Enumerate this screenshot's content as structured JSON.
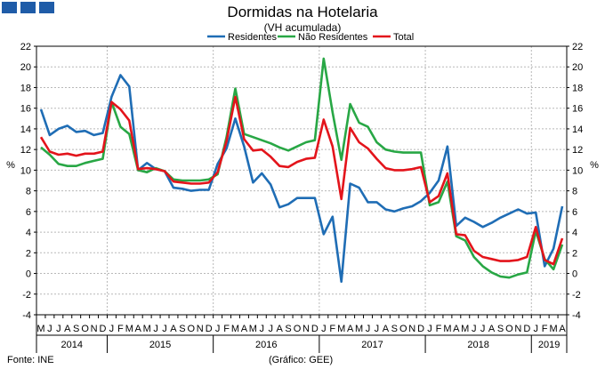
{
  "header": {
    "title": "Dormidas na Hotelaria",
    "subtitle": "(VH acumulada)"
  },
  "footer": {
    "source": "Fonte: INE",
    "credit": "(Gráfico: GEE)"
  },
  "colors": {
    "logo": "#1f5ca8"
  },
  "chart_data": {
    "type": "line",
    "title": "Dormidas na Hotelaria",
    "subtitle": "(VH acumulada)",
    "ylabel": "%",
    "ylim": [
      -4,
      22
    ],
    "yticks": [
      -4,
      -2,
      0,
      2,
      4,
      6,
      8,
      10,
      12,
      14,
      16,
      18,
      20,
      22
    ],
    "grid": true,
    "legend": "top",
    "month_labels": [
      "M",
      "J",
      "J",
      "A",
      "S",
      "O",
      "N",
      "D",
      "J",
      "F",
      "M",
      "A",
      "M",
      "J",
      "J",
      "A",
      "S",
      "O",
      "N",
      "D",
      "J",
      "F",
      "M",
      "A",
      "M",
      "J",
      "J",
      "A",
      "S",
      "O",
      "N",
      "D",
      "J",
      "F",
      "M",
      "A",
      "M",
      "J",
      "J",
      "A",
      "S",
      "O",
      "N",
      "D",
      "J",
      "F",
      "M",
      "A",
      "M",
      "J",
      "J",
      "A",
      "S",
      "O",
      "N",
      "D",
      "J",
      "F",
      "M",
      "A"
    ],
    "years": [
      {
        "label": "2014",
        "start": 0,
        "count": 8
      },
      {
        "label": "2015",
        "start": 8,
        "count": 12
      },
      {
        "label": "2016",
        "start": 20,
        "count": 12
      },
      {
        "label": "2017",
        "start": 32,
        "count": 12
      },
      {
        "label": "2018",
        "start": 44,
        "count": 12
      },
      {
        "label": "2019",
        "start": 56,
        "count": 4
      }
    ],
    "series": [
      {
        "name": "Residentes",
        "color": "#1f6db5",
        "values": [
          15.9,
          13.4,
          14.0,
          14.3,
          13.7,
          13.8,
          13.4,
          13.6,
          17.1,
          19.2,
          18.1,
          10.0,
          10.7,
          10.1,
          9.9,
          8.3,
          8.2,
          8.0,
          8.1,
          8.1,
          10.6,
          12.1,
          15.0,
          12.3,
          8.8,
          9.7,
          8.6,
          6.4,
          6.7,
          7.3,
          7.3,
          7.3,
          3.8,
          5.5,
          -0.8,
          8.7,
          8.3,
          6.9,
          6.9,
          6.2,
          6.0,
          6.3,
          6.5,
          7.0,
          7.8,
          9.0,
          12.3,
          4.6,
          5.4,
          5.0,
          4.5,
          4.9,
          5.4,
          5.8,
          6.2,
          5.8,
          5.9,
          0.7,
          2.4,
          6.5
        ]
      },
      {
        "name": "Não Residentes",
        "color": "#28a745",
        "values": [
          12.2,
          11.5,
          10.6,
          10.4,
          10.4,
          10.7,
          10.9,
          11.1,
          16.6,
          14.2,
          13.5,
          10.0,
          9.8,
          10.2,
          9.9,
          9.1,
          9.0,
          9.0,
          9.0,
          9.1,
          9.6,
          13.2,
          17.9,
          13.5,
          13.2,
          12.9,
          12.6,
          12.2,
          11.9,
          12.3,
          12.7,
          12.9,
          20.8,
          15.6,
          11.0,
          16.4,
          14.6,
          14.2,
          12.7,
          12.0,
          11.8,
          11.7,
          11.7,
          11.7,
          6.6,
          6.9,
          8.9,
          3.6,
          3.2,
          1.6,
          0.7,
          0.1,
          -0.3,
          -0.4,
          -0.1,
          0.1,
          4.1,
          1.4,
          0.4,
          2.8
        ]
      },
      {
        "name": "Total",
        "color": "#e3141b",
        "values": [
          13.2,
          11.8,
          11.5,
          11.6,
          11.4,
          11.6,
          11.6,
          11.8,
          16.6,
          15.9,
          14.8,
          10.1,
          10.2,
          10.1,
          9.9,
          8.9,
          8.8,
          8.7,
          8.7,
          8.8,
          9.8,
          12.8,
          17.1,
          13.0,
          11.9,
          12.0,
          11.3,
          10.4,
          10.3,
          10.8,
          11.1,
          11.2,
          14.9,
          12.3,
          7.2,
          14.1,
          12.7,
          12.1,
          11.1,
          10.2,
          10.0,
          10.0,
          10.1,
          10.3,
          6.9,
          7.5,
          9.7,
          3.8,
          3.7,
          2.2,
          1.6,
          1.4,
          1.2,
          1.2,
          1.3,
          1.6,
          4.5,
          1.3,
          0.9,
          3.4
        ]
      }
    ]
  }
}
